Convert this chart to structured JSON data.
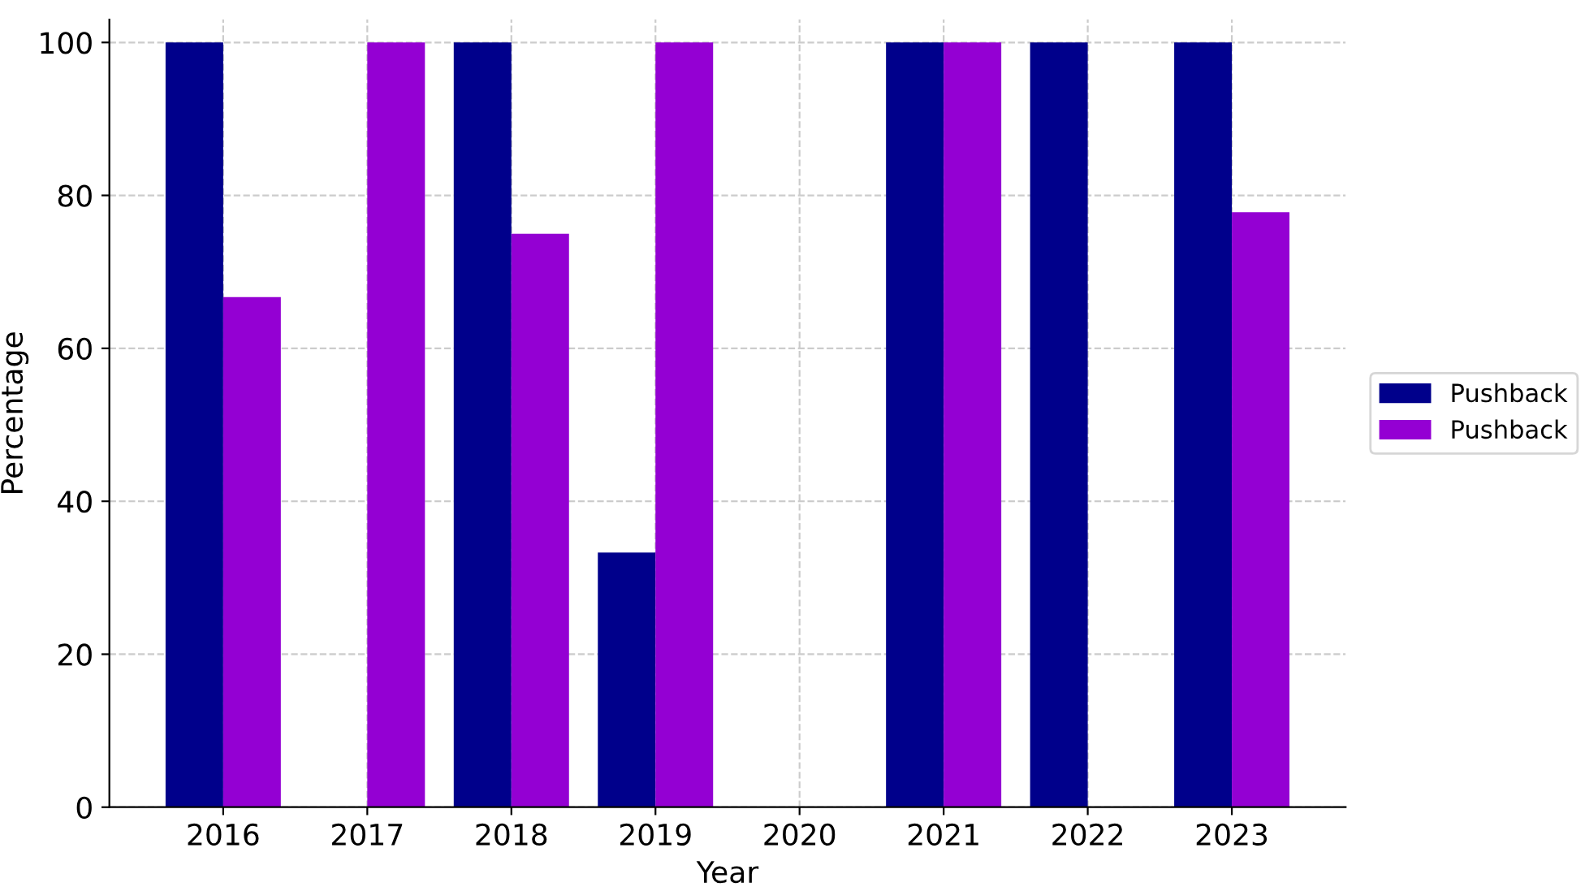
{
  "chart_data": {
    "type": "bar",
    "xlabel": "Year",
    "ylabel": "Percentage",
    "categories": [
      "2016",
      "2017",
      "2018",
      "2019",
      "2020",
      "2021",
      "2022",
      "2023"
    ],
    "series": [
      {
        "name": "Pushback",
        "color": "#00008b",
        "values": [
          100,
          null,
          100,
          33.3,
          null,
          100,
          100,
          100
        ]
      },
      {
        "name": "Pushback",
        "color": "#9400d3",
        "values": [
          66.7,
          100,
          75,
          100,
          null,
          100,
          null,
          77.8
        ]
      }
    ],
    "ylim": [
      0,
      103
    ],
    "yticks": [
      0,
      20,
      40,
      60,
      80,
      100
    ],
    "grid": true,
    "legend": "right"
  }
}
